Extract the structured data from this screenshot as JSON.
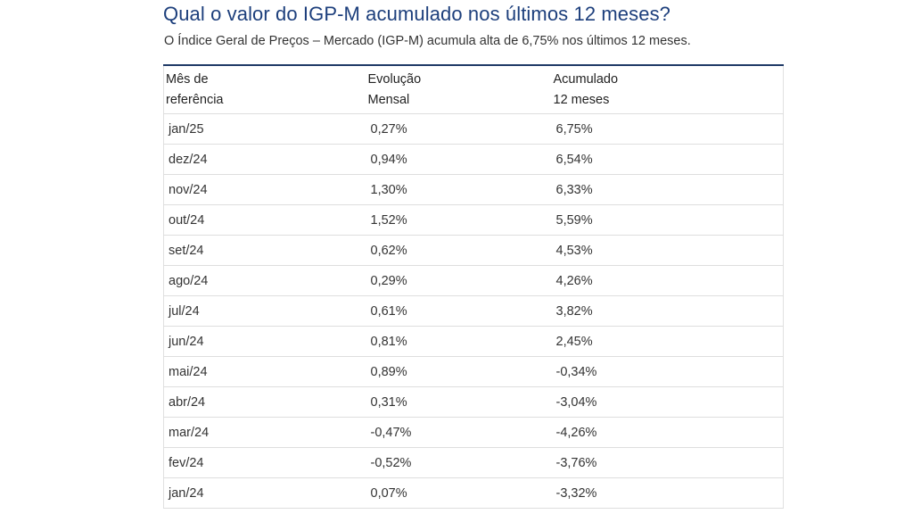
{
  "title": "Qual o valor do IGP-M acumulado nos últimos 12 meses?",
  "subtitle": "O Índice Geral de Preços – Mercado (IGP-M) acumula alta de 6,75% nos últimos 12 meses.",
  "colors": {
    "title": "#1d3f7c",
    "table_top_border": "#1f3a66",
    "row_divider": "#dedede"
  },
  "table": {
    "headers": [
      {
        "line1": "Mês de",
        "line2": "referência"
      },
      {
        "line1": "Evolução",
        "line2": "Mensal"
      },
      {
        "line1": "Acumulado",
        "line2": "12 meses"
      }
    ],
    "rows": [
      [
        "jan/25",
        "0,27%",
        "6,75%"
      ],
      [
        "dez/24",
        "0,94%",
        "6,54%"
      ],
      [
        "nov/24",
        "1,30%",
        "6,33%"
      ],
      [
        "out/24",
        "1,52%",
        "5,59%"
      ],
      [
        "set/24",
        "0,62%",
        "4,53%"
      ],
      [
        "ago/24",
        "0,29%",
        "4,26%"
      ],
      [
        "jul/24",
        "0,61%",
        "3,82%"
      ],
      [
        "jun/24",
        "0,81%",
        "2,45%"
      ],
      [
        "mai/24",
        "0,89%",
        "-0,34%"
      ],
      [
        "abr/24",
        "0,31%",
        "-3,04%"
      ],
      [
        "mar/24",
        "-0,47%",
        "-4,26%"
      ],
      [
        "fev/24",
        "-0,52%",
        "-3,76%"
      ],
      [
        "jan/24",
        "0,07%",
        "-3,32%"
      ]
    ]
  }
}
